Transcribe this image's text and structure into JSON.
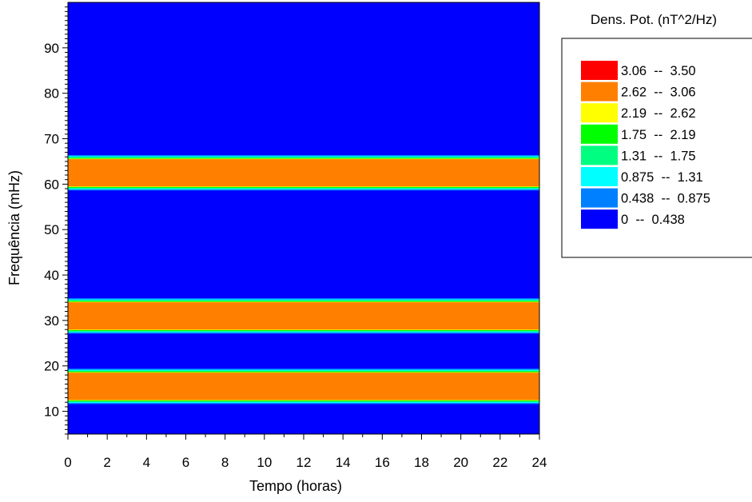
{
  "chart_data": {
    "type": "heatmap",
    "xlabel": "Tempo (horas)",
    "ylabel": "Frequência (mHz)",
    "xlim": [
      0,
      24
    ],
    "ylim": [
      5,
      100
    ],
    "x_ticks": [
      "0",
      "2",
      "4",
      "6",
      "8",
      "10",
      "12",
      "14",
      "16",
      "18",
      "20",
      "22",
      "24"
    ],
    "y_ticks": [
      "10",
      "20",
      "30",
      "40",
      "50",
      "60",
      "70",
      "80",
      "90"
    ],
    "background_level_color": "#0000ff",
    "bands": [
      {
        "y_min": 12.5,
        "y_max": 18.5,
        "level": "2.62 -- 3.06"
      },
      {
        "y_min": 28,
        "y_max": 34,
        "level": "2.62 -- 3.06"
      },
      {
        "y_min": 59.5,
        "y_max": 65.5,
        "level": "2.62 -- 3.06"
      }
    ],
    "legend": {
      "title": "Dens. Pot. (nT^2/Hz)",
      "position": "right",
      "entries": [
        {
          "label": "3.06  --  3.50",
          "color": "#ff0000"
        },
        {
          "label": "2.62  --  3.06",
          "color": "#ff8000"
        },
        {
          "label": "2.19  --  2.62",
          "color": "#ffff00"
        },
        {
          "label": "1.75  --  2.19",
          "color": "#00ff00"
        },
        {
          "label": "1.31  --  1.75",
          "color": "#00ff80"
        },
        {
          "label": "0.875  --  1.31",
          "color": "#00ffff"
        },
        {
          "label": "0.438  --  0.875",
          "color": "#0080ff"
        },
        {
          "label": "0  --  0.438",
          "color": "#0000ff"
        }
      ]
    }
  }
}
